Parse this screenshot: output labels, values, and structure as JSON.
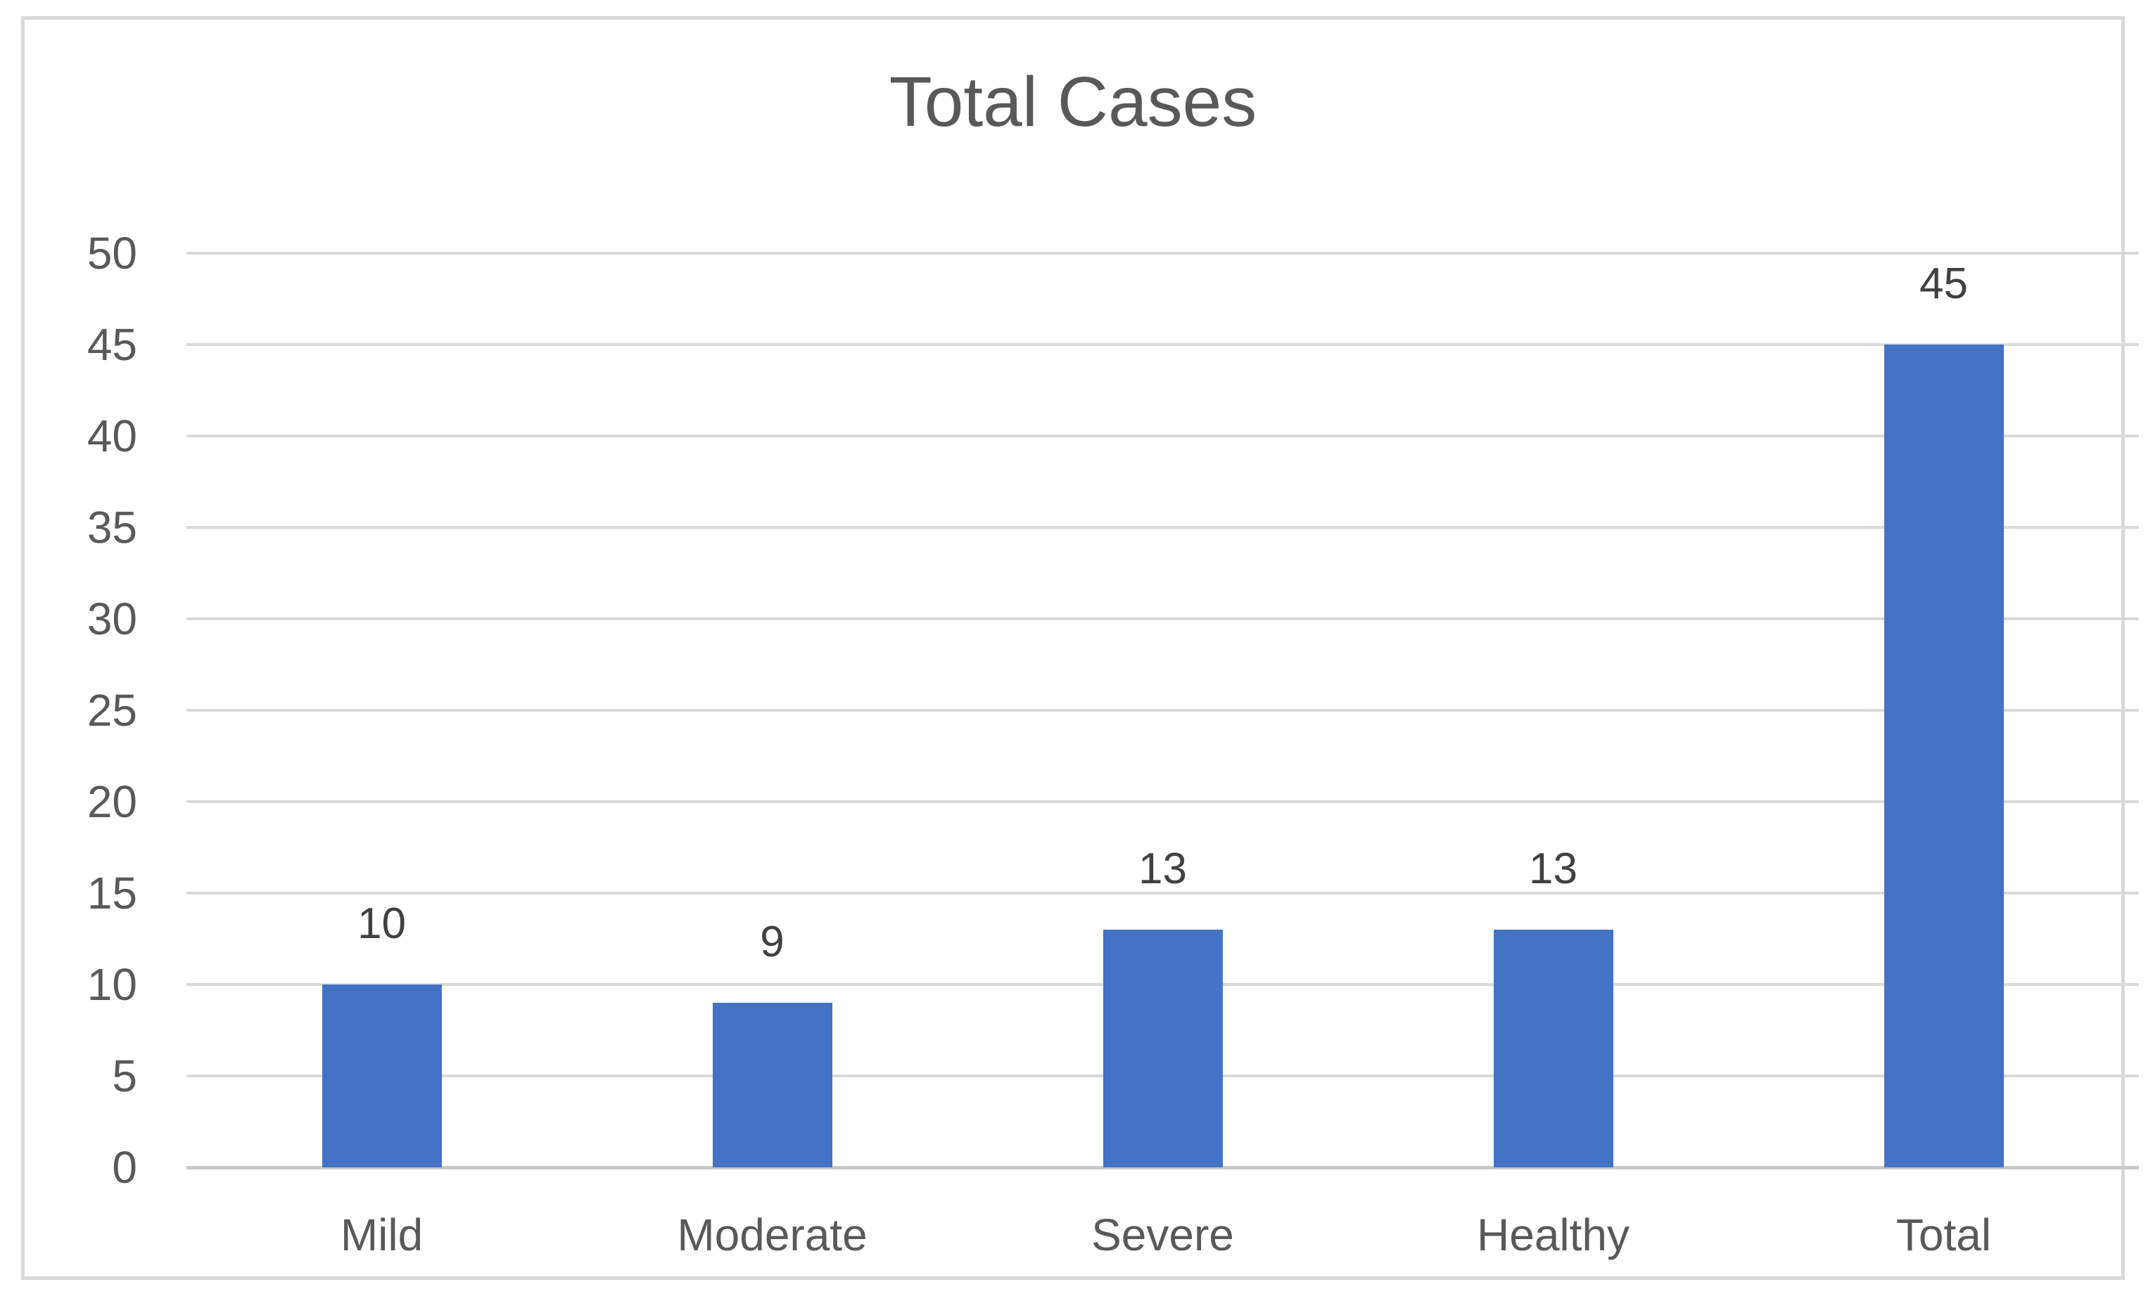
{
  "chart_data": {
    "type": "bar",
    "title": "Total Cases",
    "categories": [
      "Mild",
      "Moderate",
      "Severe",
      "Healthy",
      "Total"
    ],
    "values": [
      10,
      9,
      13,
      13,
      45
    ],
    "data_labels": [
      "10",
      "9",
      "13",
      "13",
      "45"
    ],
    "xlabel": "",
    "ylabel": "",
    "ylim": [
      0,
      50
    ],
    "ytick_step": 5,
    "yticks": [
      0,
      5,
      10,
      15,
      20,
      25,
      30,
      35,
      40,
      45,
      50
    ],
    "grid": true,
    "legend": false,
    "colors": {
      "bar": "#4472C4",
      "title": "#595959",
      "axis_text": "#595959",
      "data_label": "#404040",
      "gridline": "#D9D9D9",
      "zero_line": "#C9C9C9",
      "frame_border": "#D9D9D9",
      "background": "#FFFFFF"
    }
  }
}
